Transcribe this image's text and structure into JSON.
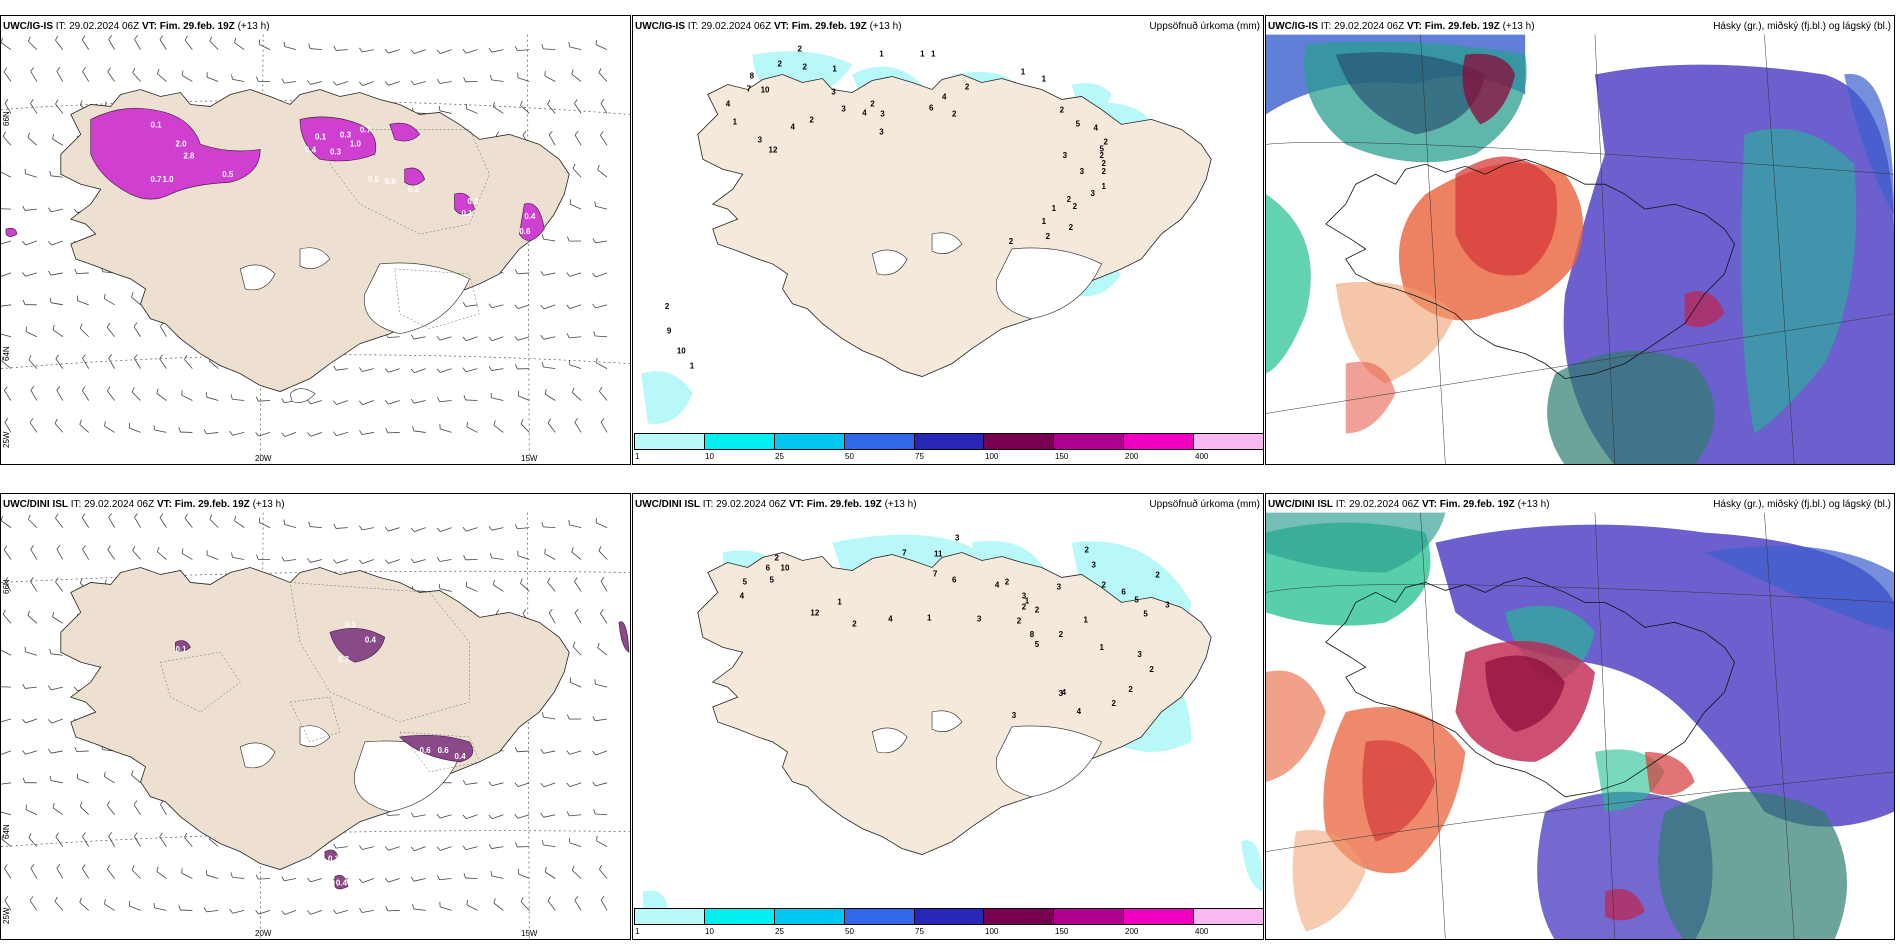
{
  "rows": [
    {
      "model": "UWC/IG-IS",
      "it_label": "IT:",
      "it_value": "29.02.2024 06Z",
      "vt_label": "VT:",
      "vt_value": "Fim. 29.feb. 19Z",
      "lead": "(+13 h)"
    },
    {
      "model": "UWC/DINI ISL",
      "it_label": "IT:",
      "it_value": "29.02.2024 06Z",
      "vt_label": "VT:",
      "vt_value": "Fim. 29.feb. 19Z",
      "lead": "(+13 h)"
    }
  ],
  "precip_title": "Uppsöfnuð úrkoma (mm)",
  "cloud_title": "Hásky (gr.), miðský (fj.bl.) og lágský (bl.)",
  "axis": {
    "lon_20w": "20W",
    "lon_15w": "15W",
    "lat_66n": "66N",
    "lat_64n": "64N",
    "lat_25w": "25W"
  },
  "colorbar": {
    "ticks": [
      "1",
      "10",
      "25",
      "50",
      "75",
      "100",
      "150",
      "200",
      "400"
    ],
    "colors": [
      "#b8f8f8",
      "#00f0f0",
      "#00c8f0",
      "#3068e8",
      "#2828b8",
      "#780050",
      "#b00090",
      "#f000c0",
      "#f8b8f0"
    ]
  },
  "ig_precip_labels": [
    "2",
    "2",
    "2",
    "1",
    "1",
    "1",
    "1",
    "8",
    "7",
    "10",
    "4",
    "1",
    "4",
    "3",
    "12",
    "3",
    "3",
    "2",
    "4",
    "2",
    "3",
    "3",
    "6",
    "4",
    "2",
    "2",
    "1",
    "1",
    "2",
    "5",
    "4",
    "5",
    "2",
    "2",
    "2",
    "1",
    "2",
    "3",
    "3",
    "3",
    "2",
    "2",
    "1",
    "1",
    "2",
    "2",
    "2",
    "2",
    "9",
    "10",
    "1"
  ],
  "dini_precip_labels": [
    "2",
    "6",
    "10",
    "5",
    "5",
    "4",
    "12",
    "1",
    "4",
    "2",
    "3",
    "7",
    "11",
    "7",
    "6",
    "4",
    "2",
    "3",
    "2",
    "3",
    "2",
    "6",
    "5",
    "5",
    "2",
    "3",
    "2",
    "2",
    "3",
    "2",
    "3",
    "3",
    "4",
    "4",
    "2",
    "1",
    "1",
    "8",
    "5",
    "2",
    "1",
    "2",
    "3",
    "2",
    "3",
    "1"
  ],
  "ig_snow_labels": [
    "0.1",
    "2.0",
    "2.8",
    "0.7",
    "1.0",
    "0.5",
    "0.4",
    "0.1",
    "0.3",
    "0.3",
    "1.0",
    "0.7",
    "0.6",
    "0.5",
    "0.2",
    "0.3",
    "0.1",
    "0.4",
    "0.6"
  ],
  "dini_snow_labels": [
    "0.1",
    "0.4",
    "0.6",
    "0.6",
    "0.4",
    "0.1",
    "0.3",
    "0.1",
    "0.4"
  ]
}
